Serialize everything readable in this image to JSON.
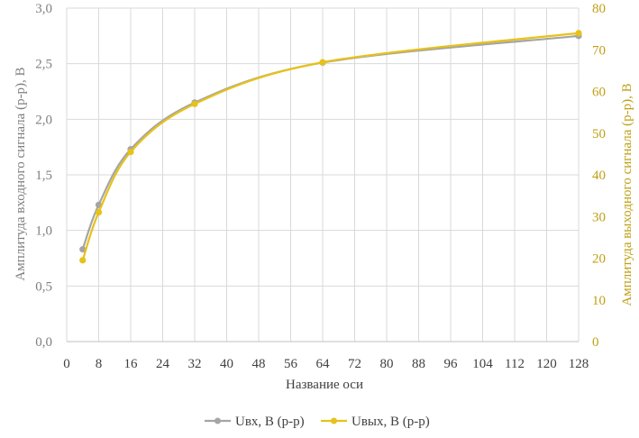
{
  "chart_data": {
    "type": "line",
    "title": "",
    "xlabel": "Название оси",
    "ylabel": "Амплитуда входного сигнала (p-p), В",
    "y2label": "Амплитуда выходного сигнала (p-p), В",
    "xlim": [
      0,
      128
    ],
    "ylim": [
      0,
      3
    ],
    "y2lim": [
      0,
      80
    ],
    "x_ticks": [
      0,
      8,
      16,
      24,
      32,
      40,
      48,
      56,
      64,
      72,
      80,
      88,
      96,
      104,
      112,
      120,
      128
    ],
    "y_ticks": [
      "0,0",
      "0,5",
      "1,0",
      "1,5",
      "2,0",
      "2,5",
      "3,0"
    ],
    "y2_ticks": [
      "0",
      "10",
      "20",
      "30",
      "40",
      "50",
      "60",
      "70",
      "80"
    ],
    "grid": true,
    "legend_position": "bottom",
    "series": [
      {
        "name": "Uвх, В (p-p)",
        "axis": "left",
        "color": "#a5a5a5",
        "x": [
          4,
          8,
          16,
          32,
          64,
          128
        ],
        "values": [
          0.83,
          1.23,
          1.73,
          2.15,
          2.51,
          2.75
        ]
      },
      {
        "name": "Uвых, В (p-p)",
        "axis": "right",
        "color": "#e6c21a",
        "x": [
          4,
          8,
          16,
          32,
          64,
          128
        ],
        "values": [
          19.5,
          31,
          45.5,
          57,
          67,
          74
        ]
      }
    ]
  }
}
